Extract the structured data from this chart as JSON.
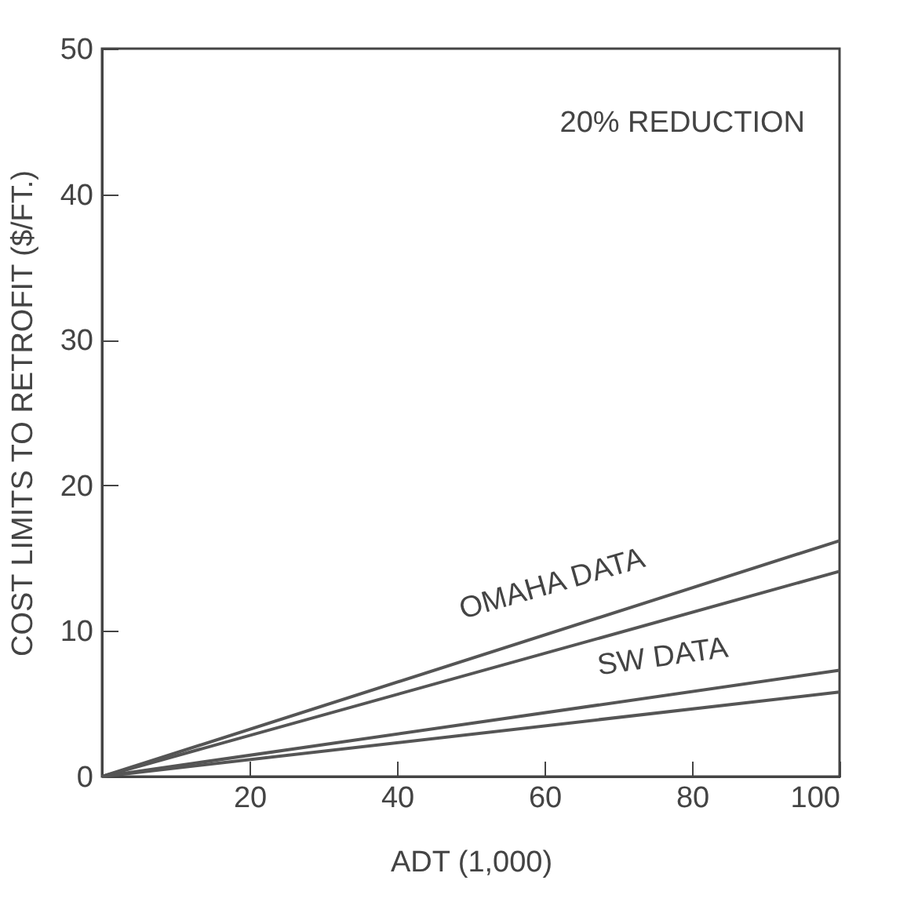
{
  "chart_data": {
    "type": "line",
    "xlabel": "ADT (1,000)",
    "ylabel": "COST LIMITS TO RETROFIT ($/FT.)",
    "xlim": [
      0,
      100
    ],
    "xticks": [
      20,
      40,
      60,
      80,
      100
    ],
    "ylim": [
      0,
      50
    ],
    "yticks": [
      0,
      10,
      20,
      30,
      40,
      50
    ],
    "x": [
      0,
      100
    ],
    "grid": false,
    "legend": false,
    "marker": "none",
    "line_style": "solid",
    "series": [
      {
        "color": "#555555",
        "values": [
          0,
          16.2
        ]
      },
      {
        "color": "#555555",
        "values": [
          0,
          14.1
        ]
      },
      {
        "color": "#555555",
        "values": [
          0,
          7.3
        ]
      },
      {
        "color": "#555555",
        "values": [
          0,
          5.8
        ]
      }
    ],
    "annotations": [
      "20% REDUCTION",
      "OMAHA DATA",
      "SW DATA"
    ]
  }
}
